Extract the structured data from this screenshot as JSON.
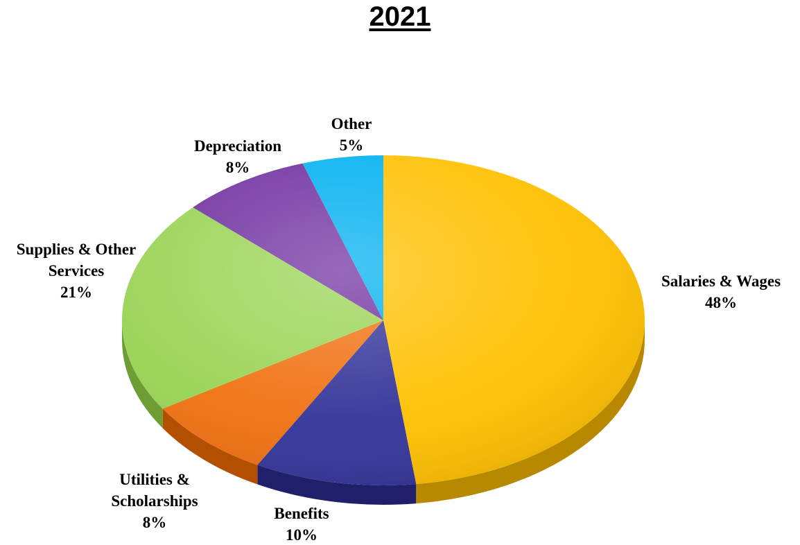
{
  "chart_data": {
    "type": "pie",
    "title": "2021",
    "slices": [
      {
        "label": "Salaries & Wages",
        "value": 48,
        "value_label": "48%",
        "color": "#FFC000",
        "side_color": "#B88900"
      },
      {
        "label": "Benefits",
        "value": 10,
        "value_label": "10%",
        "color": "#333399",
        "side_color": "#20206A"
      },
      {
        "label": "Utilities & Scholarships",
        "value": 8,
        "value_label": "8%",
        "color": "#F07010",
        "side_color": "#B34F00"
      },
      {
        "label": "Supplies & Other Services",
        "value": 21,
        "value_label": "21%",
        "color": "#99D353",
        "side_color": "#6D9E35"
      },
      {
        "label": "Depreciation",
        "value": 8,
        "value_label": "8%",
        "color": "#7030A0",
        "side_color": "#4D1E72"
      },
      {
        "label": "Other",
        "value": 5,
        "value_label": "5%",
        "color": "#00B0F0",
        "side_color": "#0080B0"
      }
    ],
    "legend": "none"
  }
}
